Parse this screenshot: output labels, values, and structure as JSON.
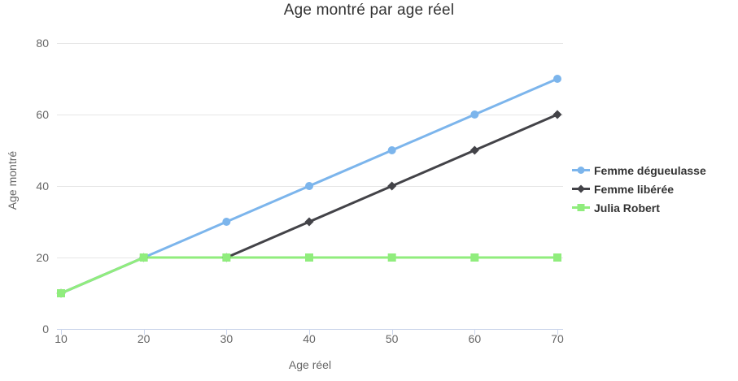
{
  "chart_data": {
    "type": "line",
    "title": "Age montré par age réel",
    "xlabel": "Age réel",
    "ylabel": "Age montré",
    "x": [
      10,
      20,
      30,
      40,
      50,
      60,
      70
    ],
    "series": [
      {
        "name": "Femme dégueulasse",
        "color": "#7cb5ec",
        "marker": "circle",
        "values": [
          10,
          20,
          30,
          40,
          50,
          60,
          70
        ]
      },
      {
        "name": "Femme libérée",
        "color": "#434348",
        "marker": "diamond",
        "values": [
          10,
          20,
          20,
          30,
          40,
          50,
          60
        ]
      },
      {
        "name": "Julia Robert",
        "color": "#90ed7d",
        "marker": "square",
        "values": [
          10,
          20,
          20,
          20,
          20,
          20,
          20
        ]
      }
    ],
    "xticks": [
      10,
      20,
      30,
      40,
      50,
      60,
      70
    ],
    "yticks": [
      0,
      20,
      40,
      60,
      80
    ],
    "xlim": [
      10,
      70
    ],
    "ylim": [
      0,
      80
    ],
    "grid": "horizontal",
    "legend_position": "right",
    "colors": {
      "grid": "#e6e6e6",
      "axis_line": "#ccd6eb",
      "tick_label": "#666666",
      "axis_title": "#666666",
      "title": "#333333",
      "legend_text": "#333333",
      "background": "#ffffff"
    }
  }
}
